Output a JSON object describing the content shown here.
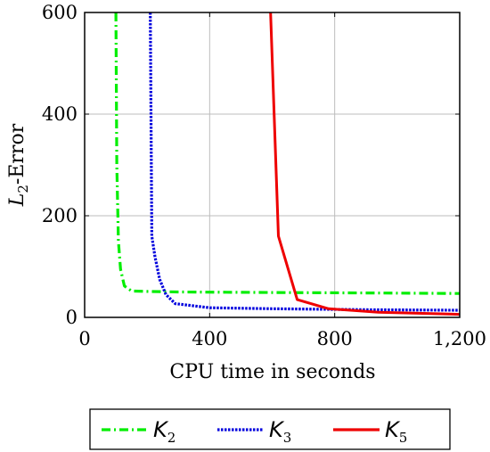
{
  "chart_data": {
    "type": "line",
    "title": "",
    "xlabel": "CPU time in seconds",
    "ylabel_main": "L",
    "ylabel_sub": "2",
    "ylabel_rest": "-Error",
    "xlim": [
      0,
      1200
    ],
    "ylim": [
      0,
      600
    ],
    "x_ticks": [
      0,
      400,
      800,
      1200
    ],
    "x_tick_labels": [
      "0",
      "400",
      "800",
      "1,200"
    ],
    "y_ticks": [
      0,
      200,
      400,
      600
    ],
    "y_tick_labels": [
      "0",
      "200",
      "400",
      "600"
    ],
    "grid": true,
    "legend_position": "bottom",
    "series": [
      {
        "name_main": "K",
        "name_sub": "2",
        "color": "#00ee00",
        "style": "dash-dot",
        "x": [
          100,
          103,
          108,
          115,
          127,
          150,
          200,
          300,
          600,
          900,
          1200
        ],
        "y": [
          600,
          300,
          150,
          95,
          62,
          52,
          51,
          50,
          49,
          48,
          47
        ]
      },
      {
        "name_main": "K",
        "name_sub": "3",
        "color": "#0000dd",
        "style": "dotted",
        "x": [
          210,
          215,
          225,
          240,
          260,
          290,
          400,
          600,
          900,
          1200
        ],
        "y": [
          600,
          160,
          120,
          75,
          45,
          27,
          19,
          17,
          15,
          14
        ]
      },
      {
        "name_main": "K",
        "name_sub": "5",
        "color": "#ee0000",
        "style": "solid",
        "x": [
          595,
          620,
          680,
          780,
          940,
          1200
        ],
        "y": [
          600,
          160,
          35,
          17,
          10,
          6
        ]
      }
    ]
  }
}
